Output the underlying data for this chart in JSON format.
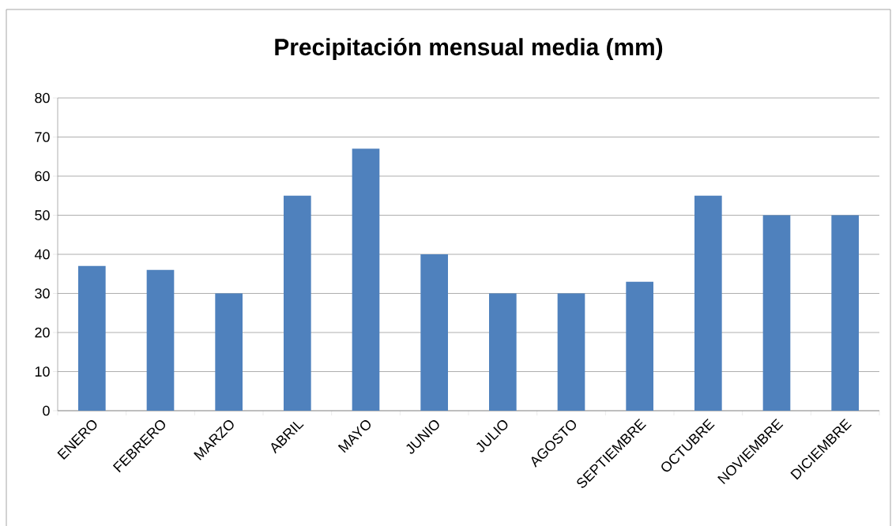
{
  "chart_data": {
    "type": "bar",
    "title": "Precipitación mensual media (mm)",
    "categories": [
      "ENERO",
      "FEBRERO",
      "MARZO",
      "ABRIL",
      "MAYO",
      "JUNIO",
      "JULIO",
      "AGOSTO",
      "SEPTIEMBRE",
      "OCTUBRE",
      "NOVIEMBRE",
      "DICIEMBRE"
    ],
    "values": [
      37,
      36,
      30,
      55,
      67,
      40,
      30,
      30,
      33,
      55,
      50,
      50
    ],
    "color": "#4f81bd",
    "ylim": [
      0,
      80
    ],
    "yticks": [
      0,
      10,
      20,
      30,
      40,
      50,
      60,
      70,
      80
    ],
    "grid": "y"
  }
}
